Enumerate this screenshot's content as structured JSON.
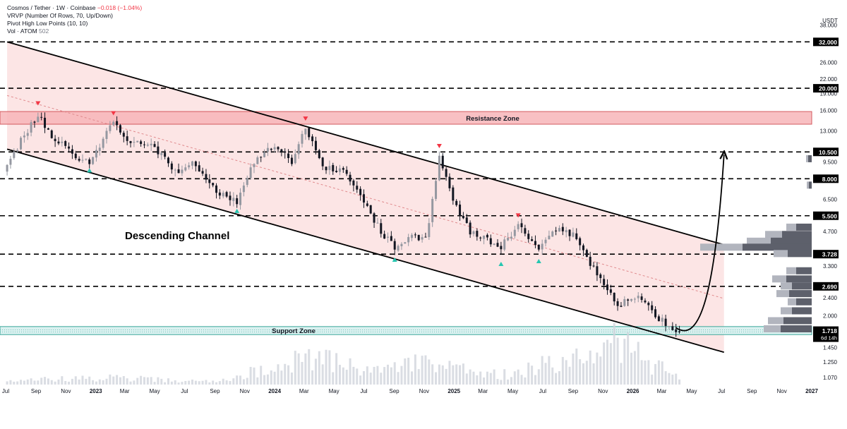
{
  "legend": {
    "symbol_line": "Cosmos / Tether · 1W · Coinbase",
    "change_text": "−0.018 (−1.04%)",
    "vrvp_line": "VRVP (Number Of Rows, 70, Up/Down)",
    "pivot_line": "Pivot High Low Points (10, 10)",
    "vol_label": "Vol · ATOM",
    "vol_value": "502"
  },
  "colors": {
    "up": "#9598a1",
    "down": "#131722",
    "channel_fill": "#fbdcdc",
    "resistance_fill": "#f7b5b8",
    "support_fill": "#d6f0ee",
    "pivot_high": "#f23645",
    "pivot_low": "#26c6b0",
    "label_bg": "#000000"
  },
  "chart_data": {
    "type": "candlestick",
    "symbol": "Cosmos / Tether · 1W · Coinbase",
    "price_scale": "log",
    "y_currency": "USDT",
    "y_ticks": [
      1.07,
      1.25,
      1.45,
      1.718,
      2.0,
      2.4,
      2.69,
      3.3,
      3.728,
      4.7,
      5.5,
      6.5,
      8.0,
      9.5,
      10.5,
      13.0,
      16.0,
      19.0,
      20.0,
      22.0,
      26.0,
      32.0,
      38.0
    ],
    "price_labels": [
      {
        "value": 38.0,
        "text": "38.000"
      },
      {
        "value": 26.0,
        "text": "26.000"
      },
      {
        "value": 22.0,
        "text": "22.000"
      },
      {
        "value": 19.0,
        "text": "19.000"
      },
      {
        "value": 16.0,
        "text": "16.000"
      },
      {
        "value": 13.0,
        "text": "13.000"
      },
      {
        "value": 9.5,
        "text": "9.500"
      },
      {
        "value": 6.5,
        "text": "6.500"
      },
      {
        "value": 4.7,
        "text": "4.700"
      },
      {
        "value": 3.3,
        "text": "3.300"
      },
      {
        "value": 2.4,
        "text": "2.400"
      },
      {
        "value": 2.0,
        "text": "2.000"
      },
      {
        "value": 1.45,
        "text": "1.450"
      },
      {
        "value": 1.25,
        "text": "1.250"
      },
      {
        "value": 1.07,
        "text": "1.070"
      }
    ],
    "horizontal_levels": [
      {
        "value": 32.0,
        "label": "32.000"
      },
      {
        "value": 20.0,
        "label": "20.000"
      },
      {
        "value": 10.5,
        "label": "10.500"
      },
      {
        "value": 8.0,
        "label": "8.000"
      },
      {
        "value": 5.5,
        "label": "5.500"
      },
      {
        "value": 3.728,
        "label": "3.728"
      },
      {
        "value": 2.69,
        "label": "2.690"
      }
    ],
    "current_price": {
      "value": 1.718,
      "label": "1.718",
      "countdown": "6d 14h"
    },
    "zones": [
      {
        "name": "Resistance Zone",
        "low": 13.9,
        "high": 15.8
      },
      {
        "name": "Support Zone",
        "low": 1.65,
        "high": 1.79
      }
    ],
    "annotations": [
      {
        "text": "Descending Channel"
      },
      {
        "text": "Resistance Zone"
      },
      {
        "text": "Support Zone"
      }
    ],
    "x_tick_labels": [
      "Jul",
      "Sep",
      "Nov",
      "2023",
      "Mar",
      "May",
      "Jul",
      "Sep",
      "Nov",
      "2024",
      "Mar",
      "May",
      "Jul",
      "Sep",
      "Nov",
      "2025",
      "Mar",
      "May",
      "Jul",
      "Sep",
      "Nov",
      "2026",
      "Mar",
      "May",
      "Jul",
      "Sep",
      "Nov",
      "2027"
    ],
    "x_tick_bold": [
      "2023",
      "2024",
      "2025",
      "2026",
      "2027"
    ],
    "channel": {
      "upper": [
        {
          "date": "2022-07-04",
          "price": 32.0
        },
        {
          "date": "2026-07-06",
          "price": 4.1
        }
      ],
      "lower": [
        {
          "date": "2022-07-04",
          "price": 10.8
        },
        {
          "date": "2026-07-06",
          "price": 1.38
        }
      ]
    },
    "projection": {
      "from": {
        "date": "2026-04-13",
        "price": 1.72
      },
      "to": {
        "date": "2026-07-06",
        "price": 10.2
      }
    },
    "pivot_highs": [
      {
        "date": "2022-09-05",
        "price": 16.8
      },
      {
        "date": "2023-02-06",
        "price": 15.2
      },
      {
        "date": "2024-03-04",
        "price": 14.4
      },
      {
        "date": "2024-12-02",
        "price": 10.9
      },
      {
        "date": "2025-05-12",
        "price": 5.4
      }
    ],
    "pivot_lows": [
      {
        "date": "2022-12-19",
        "price": 8.9
      },
      {
        "date": "2023-10-16",
        "price": 5.9
      },
      {
        "date": "2024-09-02",
        "price": 3.6
      },
      {
        "date": "2025-04-07",
        "price": 3.45
      },
      {
        "date": "2025-06-23",
        "price": 3.55
      }
    ],
    "volume_profile": [
      {
        "price": 4.9,
        "up": 14,
        "down": 22
      },
      {
        "price": 4.55,
        "up": 24,
        "down": 42
      },
      {
        "price": 4.25,
        "up": 34,
        "down": 58
      },
      {
        "price": 4.0,
        "up": 60,
        "down": 98
      },
      {
        "price": 3.75,
        "up": 20,
        "down": 34
      },
      {
        "price": 3.15,
        "up": 14,
        "down": 22
      },
      {
        "price": 2.9,
        "up": 20,
        "down": 36
      },
      {
        "price": 2.7,
        "up": 16,
        "down": 28
      },
      {
        "price": 2.5,
        "up": 18,
        "down": 32
      },
      {
        "price": 2.3,
        "up": 12,
        "down": 22
      },
      {
        "price": 2.1,
        "up": 16,
        "down": 28
      },
      {
        "price": 1.9,
        "up": 22,
        "down": 40
      },
      {
        "price": 1.75,
        "up": 24,
        "down": 44
      },
      {
        "price": 9.8,
        "up": 3,
        "down": 5
      },
      {
        "price": 7.5,
        "up": 3,
        "down": 4
      }
    ],
    "close_keypoints": [
      {
        "date": "2022-07-04",
        "close": 9.0
      },
      {
        "date": "2022-08-01",
        "close": 11.8
      },
      {
        "date": "2022-09-05",
        "close": 15.2
      },
      {
        "date": "2022-10-03",
        "close": 12.5
      },
      {
        "date": "2022-11-07",
        "close": 10.5
      },
      {
        "date": "2022-12-19",
        "close": 9.3
      },
      {
        "date": "2023-02-06",
        "close": 14.3
      },
      {
        "date": "2023-03-13",
        "close": 11.5
      },
      {
        "date": "2023-05-01",
        "close": 11.0
      },
      {
        "date": "2023-06-12",
        "close": 8.6
      },
      {
        "date": "2023-07-17",
        "close": 9.4
      },
      {
        "date": "2023-09-04",
        "close": 7.0
      },
      {
        "date": "2023-10-16",
        "close": 6.3
      },
      {
        "date": "2023-11-20",
        "close": 9.5
      },
      {
        "date": "2024-01-01",
        "close": 11.2
      },
      {
        "date": "2024-02-05",
        "close": 9.6
      },
      {
        "date": "2024-03-04",
        "close": 13.6
      },
      {
        "date": "2024-04-08",
        "close": 9.0
      },
      {
        "date": "2024-05-20",
        "close": 8.7
      },
      {
        "date": "2024-07-08",
        "close": 6.0
      },
      {
        "date": "2024-08-05",
        "close": 4.7
      },
      {
        "date": "2024-09-02",
        "close": 4.0
      },
      {
        "date": "2024-10-07",
        "close": 4.5
      },
      {
        "date": "2024-11-04",
        "close": 4.3
      },
      {
        "date": "2024-12-02",
        "close": 9.8
      },
      {
        "date": "2024-12-30",
        "close": 6.4
      },
      {
        "date": "2025-02-03",
        "close": 4.7
      },
      {
        "date": "2025-04-07",
        "close": 4.0
      },
      {
        "date": "2025-05-12",
        "close": 5.0
      },
      {
        "date": "2025-06-23",
        "close": 3.9
      },
      {
        "date": "2025-07-21",
        "close": 4.8
      },
      {
        "date": "2025-09-01",
        "close": 4.6
      },
      {
        "date": "2025-10-13",
        "close": 3.2
      },
      {
        "date": "2025-11-03",
        "close": 2.75
      },
      {
        "date": "2025-12-01",
        "close": 2.2
      },
      {
        "date": "2026-01-12",
        "close": 2.5
      },
      {
        "date": "2026-02-09",
        "close": 2.05
      },
      {
        "date": "2026-03-16",
        "close": 1.82
      },
      {
        "date": "2026-04-06",
        "close": 1.718
      }
    ],
    "volume_keypoints": [
      {
        "date": "2022-07-04",
        "v": 0.06
      },
      {
        "date": "2023-02-06",
        "v": 0.1
      },
      {
        "date": "2023-09-04",
        "v": 0.04
      },
      {
        "date": "2024-03-04",
        "v": 0.42
      },
      {
        "date": "2024-08-05",
        "v": 0.18
      },
      {
        "date": "2024-12-02",
        "v": 0.4
      },
      {
        "date": "2025-04-07",
        "v": 0.14
      },
      {
        "date": "2025-10-13",
        "v": 0.45
      },
      {
        "date": "2025-12-01",
        "v": 0.65
      },
      {
        "date": "2026-02-02",
        "v": 0.35
      },
      {
        "date": "2026-04-06",
        "v": 0.08
      }
    ]
  }
}
